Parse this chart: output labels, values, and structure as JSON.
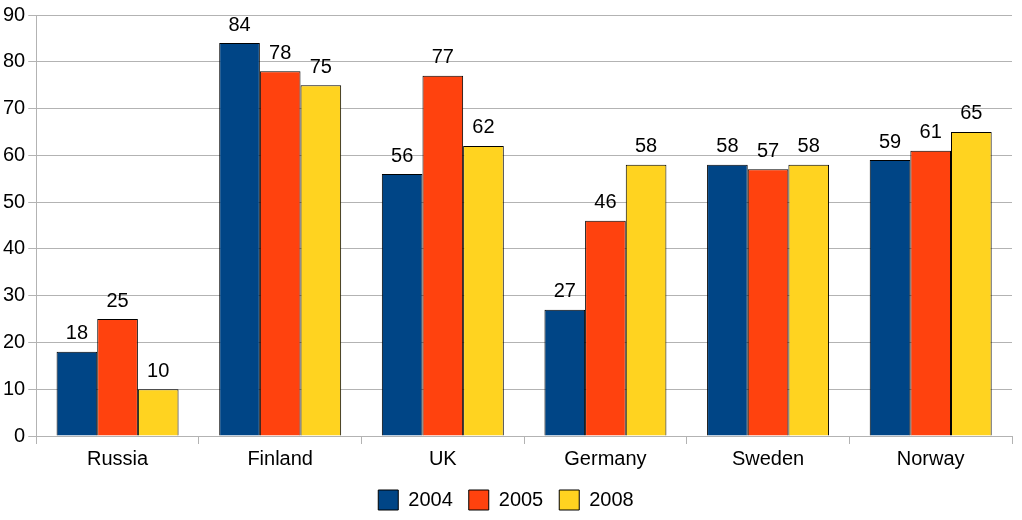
{
  "chart_data": {
    "type": "bar",
    "categories": [
      "Russia",
      "Finland",
      "UK",
      "Germany",
      "Sweden",
      "Norway"
    ],
    "series": [
      {
        "name": "2004",
        "color": "#004586",
        "values": [
          18,
          84,
          56,
          27,
          58,
          59
        ]
      },
      {
        "name": "2005",
        "color": "#ff420e",
        "values": [
          25,
          78,
          77,
          46,
          57,
          61
        ]
      },
      {
        "name": "2008",
        "color": "#ffd320",
        "values": [
          10,
          75,
          62,
          58,
          58,
          65
        ]
      }
    ],
    "ylim": [
      0,
      90
    ],
    "yticks": [
      0,
      10,
      20,
      30,
      40,
      50,
      60,
      70,
      80,
      90
    ],
    "grid": "y",
    "legend": "bottom",
    "data_labels": true
  }
}
